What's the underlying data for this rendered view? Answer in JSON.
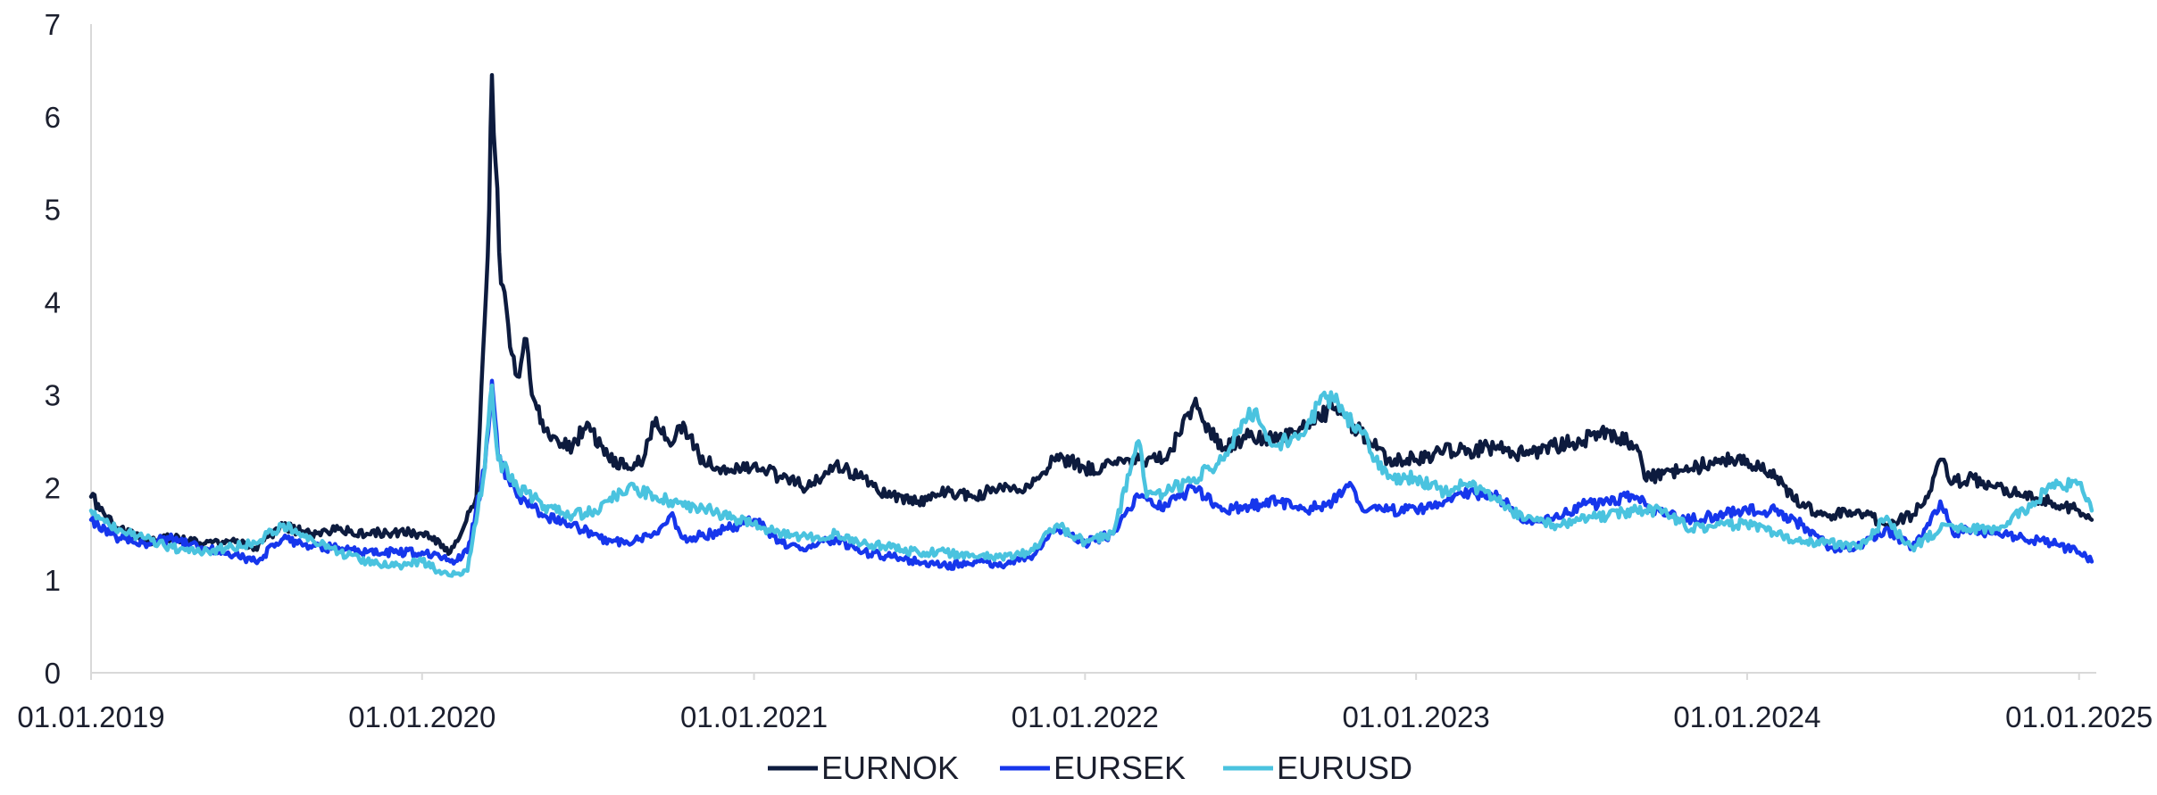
{
  "chart_data": {
    "type": "line",
    "title": "",
    "xlabel": "",
    "ylabel": "",
    "ylim": [
      0,
      7
    ],
    "y_ticks": [
      "0",
      "1",
      "2",
      "3",
      "4",
      "5",
      "6",
      "7"
    ],
    "x_tick_labels": [
      "01.01.2019",
      "01.01.2020",
      "01.01.2021",
      "01.01.2022",
      "01.01.2023",
      "01.01.2024",
      "01.01.2025"
    ],
    "xlim": [
      "2019-01-01",
      "2025-01-20"
    ],
    "grid": false,
    "legend_position": "bottom-center",
    "series": [
      {
        "name": "EURNOK",
        "color": "#0d1b3e",
        "points": [
          [
            "2019-01-01",
            1.9
          ],
          [
            "2019-02-01",
            1.55
          ],
          [
            "2019-03-01",
            1.42
          ],
          [
            "2019-04-01",
            1.45
          ],
          [
            "2019-05-01",
            1.4
          ],
          [
            "2019-06-01",
            1.42
          ],
          [
            "2019-07-01",
            1.35
          ],
          [
            "2019-08-01",
            1.58
          ],
          [
            "2019-09-01",
            1.5
          ],
          [
            "2019-10-01",
            1.55
          ],
          [
            "2019-11-01",
            1.5
          ],
          [
            "2019-12-01",
            1.52
          ],
          [
            "2020-01-01",
            1.5
          ],
          [
            "2020-01-20",
            1.42
          ],
          [
            "2020-02-01",
            1.3
          ],
          [
            "2020-02-15",
            1.55
          ],
          [
            "2020-03-01",
            1.9
          ],
          [
            "2020-03-10",
            3.8
          ],
          [
            "2020-03-15",
            5.0
          ],
          [
            "2020-03-18",
            6.45
          ],
          [
            "2020-03-22",
            5.5
          ],
          [
            "2020-03-28",
            4.2
          ],
          [
            "2020-04-05",
            3.75
          ],
          [
            "2020-04-15",
            3.2
          ],
          [
            "2020-04-25",
            3.6
          ],
          [
            "2020-05-01",
            3.0
          ],
          [
            "2020-05-20",
            2.55
          ],
          [
            "2020-06-15",
            2.45
          ],
          [
            "2020-07-01",
            2.7
          ],
          [
            "2020-07-20",
            2.35
          ],
          [
            "2020-08-15",
            2.2
          ],
          [
            "2020-09-01",
            2.3
          ],
          [
            "2020-09-15",
            2.75
          ],
          [
            "2020-10-01",
            2.45
          ],
          [
            "2020-10-15",
            2.7
          ],
          [
            "2020-11-01",
            2.35
          ],
          [
            "2020-12-01",
            2.15
          ],
          [
            "2021-01-01",
            2.25
          ],
          [
            "2021-02-01",
            2.1
          ],
          [
            "2021-03-01",
            2.0
          ],
          [
            "2021-04-01",
            2.25
          ],
          [
            "2021-05-01",
            2.1
          ],
          [
            "2021-06-01",
            1.9
          ],
          [
            "2021-07-01",
            1.85
          ],
          [
            "2021-08-01",
            1.95
          ],
          [
            "2021-09-01",
            1.9
          ],
          [
            "2021-10-01",
            2.0
          ],
          [
            "2021-11-01",
            2.0
          ],
          [
            "2021-12-01",
            2.35
          ],
          [
            "2022-01-01",
            2.2
          ],
          [
            "2022-02-01",
            2.25
          ],
          [
            "2022-03-01",
            2.3
          ],
          [
            "2022-04-01",
            2.3
          ],
          [
            "2022-05-01",
            2.9
          ],
          [
            "2022-06-01",
            2.4
          ],
          [
            "2022-07-01",
            2.55
          ],
          [
            "2022-08-01",
            2.5
          ],
          [
            "2022-09-01",
            2.65
          ],
          [
            "2022-10-01",
            2.85
          ],
          [
            "2022-11-01",
            2.6
          ],
          [
            "2022-12-01",
            2.3
          ],
          [
            "2023-01-01",
            2.3
          ],
          [
            "2023-02-01",
            2.4
          ],
          [
            "2023-03-01",
            2.4
          ],
          [
            "2023-04-01",
            2.45
          ],
          [
            "2023-05-01",
            2.35
          ],
          [
            "2023-06-01",
            2.45
          ],
          [
            "2023-07-01",
            2.5
          ],
          [
            "2023-08-01",
            2.6
          ],
          [
            "2023-09-01",
            2.45
          ],
          [
            "2023-09-10",
            2.1
          ],
          [
            "2023-10-01",
            2.15
          ],
          [
            "2023-11-01",
            2.2
          ],
          [
            "2023-12-01",
            2.3
          ],
          [
            "2024-01-01",
            2.3
          ],
          [
            "2024-02-01",
            2.1
          ],
          [
            "2024-03-01",
            1.8
          ],
          [
            "2024-04-01",
            1.7
          ],
          [
            "2024-05-01",
            1.75
          ],
          [
            "2024-06-01",
            1.6
          ],
          [
            "2024-07-01",
            1.7
          ],
          [
            "2024-07-20",
            1.95
          ],
          [
            "2024-08-01",
            2.3
          ],
          [
            "2024-08-15",
            2.05
          ],
          [
            "2024-09-01",
            2.1
          ],
          [
            "2024-10-01",
            2.0
          ],
          [
            "2024-11-01",
            1.9
          ],
          [
            "2024-12-01",
            1.85
          ],
          [
            "2025-01-01",
            1.75
          ],
          [
            "2025-01-15",
            1.65
          ]
        ]
      },
      {
        "name": "EURSEK",
        "color": "#1636ec",
        "points": [
          [
            "2019-01-01",
            1.65
          ],
          [
            "2019-02-01",
            1.45
          ],
          [
            "2019-03-01",
            1.4
          ],
          [
            "2019-04-01",
            1.45
          ],
          [
            "2019-05-01",
            1.35
          ],
          [
            "2019-06-01",
            1.3
          ],
          [
            "2019-07-01",
            1.2
          ],
          [
            "2019-08-01",
            1.45
          ],
          [
            "2019-09-01",
            1.35
          ],
          [
            "2019-10-01",
            1.35
          ],
          [
            "2019-11-01",
            1.3
          ],
          [
            "2019-12-01",
            1.3
          ],
          [
            "2020-01-01",
            1.3
          ],
          [
            "2020-02-01",
            1.2
          ],
          [
            "2020-02-20",
            1.3
          ],
          [
            "2020-03-10",
            2.2
          ],
          [
            "2020-03-18",
            3.15
          ],
          [
            "2020-03-25",
            2.3
          ],
          [
            "2020-04-15",
            1.9
          ],
          [
            "2020-05-15",
            1.7
          ],
          [
            "2020-06-15",
            1.6
          ],
          [
            "2020-07-15",
            1.45
          ],
          [
            "2020-08-15",
            1.4
          ],
          [
            "2020-09-15",
            1.5
          ],
          [
            "2020-10-01",
            1.7
          ],
          [
            "2020-10-15",
            1.45
          ],
          [
            "2020-11-15",
            1.5
          ],
          [
            "2020-12-15",
            1.6
          ],
          [
            "2021-01-01",
            1.65
          ],
          [
            "2021-02-01",
            1.4
          ],
          [
            "2021-03-01",
            1.35
          ],
          [
            "2021-04-01",
            1.45
          ],
          [
            "2021-05-01",
            1.3
          ],
          [
            "2021-06-01",
            1.25
          ],
          [
            "2021-07-01",
            1.2
          ],
          [
            "2021-08-01",
            1.15
          ],
          [
            "2021-09-01",
            1.2
          ],
          [
            "2021-10-01",
            1.15
          ],
          [
            "2021-11-01",
            1.25
          ],
          [
            "2021-12-01",
            1.55
          ],
          [
            "2022-01-01",
            1.4
          ],
          [
            "2022-02-01",
            1.5
          ],
          [
            "2022-03-01",
            1.9
          ],
          [
            "2022-04-01",
            1.8
          ],
          [
            "2022-05-01",
            2.0
          ],
          [
            "2022-06-01",
            1.75
          ],
          [
            "2022-07-01",
            1.8
          ],
          [
            "2022-08-01",
            1.85
          ],
          [
            "2022-09-01",
            1.75
          ],
          [
            "2022-10-01",
            1.85
          ],
          [
            "2022-10-20",
            2.05
          ],
          [
            "2022-11-01",
            1.8
          ],
          [
            "2022-12-01",
            1.75
          ],
          [
            "2023-01-01",
            1.75
          ],
          [
            "2023-02-01",
            1.85
          ],
          [
            "2023-03-01",
            1.95
          ],
          [
            "2023-04-01",
            1.9
          ],
          [
            "2023-05-01",
            1.65
          ],
          [
            "2023-06-01",
            1.65
          ],
          [
            "2023-07-01",
            1.8
          ],
          [
            "2023-08-01",
            1.85
          ],
          [
            "2023-09-01",
            1.9
          ],
          [
            "2023-10-01",
            1.7
          ],
          [
            "2023-11-01",
            1.65
          ],
          [
            "2023-12-01",
            1.7
          ],
          [
            "2024-01-01",
            1.75
          ],
          [
            "2024-02-01",
            1.75
          ],
          [
            "2024-03-01",
            1.6
          ],
          [
            "2024-04-01",
            1.35
          ],
          [
            "2024-05-01",
            1.35
          ],
          [
            "2024-06-01",
            1.55
          ],
          [
            "2024-07-01",
            1.35
          ],
          [
            "2024-07-20",
            1.6
          ],
          [
            "2024-08-01",
            1.85
          ],
          [
            "2024-08-15",
            1.5
          ],
          [
            "2024-09-01",
            1.55
          ],
          [
            "2024-10-01",
            1.5
          ],
          [
            "2024-11-01",
            1.45
          ],
          [
            "2024-12-01",
            1.4
          ],
          [
            "2025-01-01",
            1.3
          ],
          [
            "2025-01-15",
            1.2
          ]
        ]
      },
      {
        "name": "EURUSD",
        "color": "#4ac3df",
        "points": [
          [
            "2019-01-01",
            1.75
          ],
          [
            "2019-02-01",
            1.55
          ],
          [
            "2019-03-01",
            1.45
          ],
          [
            "2019-04-01",
            1.35
          ],
          [
            "2019-05-01",
            1.3
          ],
          [
            "2019-06-01",
            1.35
          ],
          [
            "2019-07-01",
            1.4
          ],
          [
            "2019-08-01",
            1.6
          ],
          [
            "2019-09-01",
            1.45
          ],
          [
            "2019-10-01",
            1.3
          ],
          [
            "2019-11-01",
            1.2
          ],
          [
            "2019-12-01",
            1.15
          ],
          [
            "2020-01-01",
            1.2
          ],
          [
            "2020-01-20",
            1.1
          ],
          [
            "2020-02-01",
            1.05
          ],
          [
            "2020-02-20",
            1.1
          ],
          [
            "2020-03-10",
            2.2
          ],
          [
            "2020-03-18",
            3.1
          ],
          [
            "2020-03-25",
            2.3
          ],
          [
            "2020-04-15",
            2.0
          ],
          [
            "2020-05-15",
            1.8
          ],
          [
            "2020-06-15",
            1.7
          ],
          [
            "2020-07-15",
            1.75
          ],
          [
            "2020-08-01",
            1.9
          ],
          [
            "2020-08-15",
            2.0
          ],
          [
            "2020-09-15",
            1.9
          ],
          [
            "2020-10-15",
            1.8
          ],
          [
            "2020-11-15",
            1.75
          ],
          [
            "2020-12-15",
            1.65
          ],
          [
            "2021-01-01",
            1.6
          ],
          [
            "2021-02-01",
            1.5
          ],
          [
            "2021-03-01",
            1.45
          ],
          [
            "2021-04-01",
            1.5
          ],
          [
            "2021-05-01",
            1.4
          ],
          [
            "2021-06-01",
            1.35
          ],
          [
            "2021-07-01",
            1.3
          ],
          [
            "2021-08-01",
            1.3
          ],
          [
            "2021-09-01",
            1.25
          ],
          [
            "2021-10-01",
            1.25
          ],
          [
            "2021-11-01",
            1.3
          ],
          [
            "2021-12-01",
            1.6
          ],
          [
            "2022-01-01",
            1.4
          ],
          [
            "2022-02-01",
            1.5
          ],
          [
            "2022-03-01",
            2.5
          ],
          [
            "2022-03-10",
            1.9
          ],
          [
            "2022-04-01",
            1.95
          ],
          [
            "2022-05-01",
            2.1
          ],
          [
            "2022-06-01",
            2.3
          ],
          [
            "2022-07-01",
            2.85
          ],
          [
            "2022-08-01",
            2.45
          ],
          [
            "2022-09-01",
            2.6
          ],
          [
            "2022-09-20",
            3.0
          ],
          [
            "2022-10-01",
            2.95
          ],
          [
            "2022-11-01",
            2.6
          ],
          [
            "2022-12-01",
            2.1
          ],
          [
            "2023-01-01",
            2.1
          ],
          [
            "2023-02-01",
            1.95
          ],
          [
            "2023-03-01",
            2.05
          ],
          [
            "2023-04-01",
            1.85
          ],
          [
            "2023-05-01",
            1.65
          ],
          [
            "2023-06-01",
            1.6
          ],
          [
            "2023-07-01",
            1.65
          ],
          [
            "2023-08-01",
            1.7
          ],
          [
            "2023-09-01",
            1.75
          ],
          [
            "2023-10-01",
            1.75
          ],
          [
            "2023-11-01",
            1.55
          ],
          [
            "2023-12-01",
            1.6
          ],
          [
            "2024-01-01",
            1.6
          ],
          [
            "2024-02-01",
            1.5
          ],
          [
            "2024-03-01",
            1.4
          ],
          [
            "2024-04-01",
            1.4
          ],
          [
            "2024-05-01",
            1.35
          ],
          [
            "2024-06-01",
            1.65
          ],
          [
            "2024-07-01",
            1.35
          ],
          [
            "2024-08-01",
            1.55
          ],
          [
            "2024-09-01",
            1.55
          ],
          [
            "2024-10-01",
            1.55
          ],
          [
            "2024-11-01",
            1.75
          ],
          [
            "2024-12-01",
            2.0
          ],
          [
            "2025-01-01",
            2.05
          ],
          [
            "2025-01-15",
            1.75
          ]
        ]
      }
    ]
  }
}
